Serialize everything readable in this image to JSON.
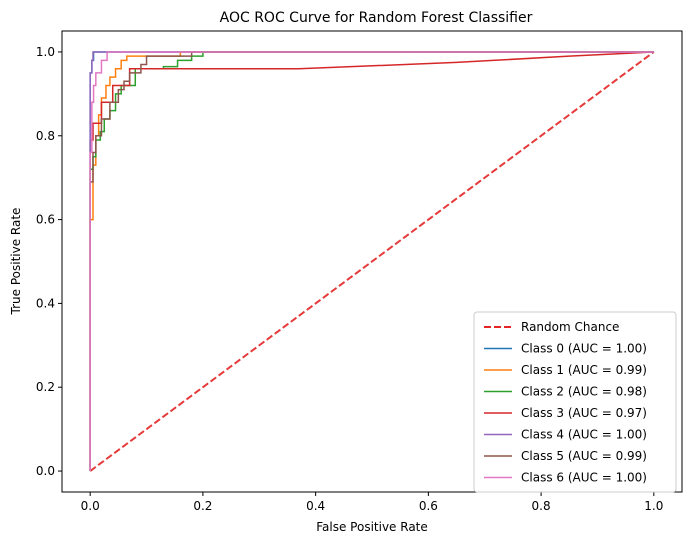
{
  "chart_data": {
    "type": "line",
    "title": "AOC ROC Curve for Random Forest Classifier",
    "xlabel": "False Positive Rate",
    "ylabel": "True Positive Rate",
    "xlim": [
      -0.05,
      1.05
    ],
    "ylim": [
      -0.05,
      1.05
    ],
    "xticks": [
      "0.0",
      "0.2",
      "0.4",
      "0.6",
      "0.8",
      "1.0"
    ],
    "yticks": [
      "0.0",
      "0.2",
      "0.4",
      "0.6",
      "0.8",
      "1.0"
    ],
    "grid": false,
    "legend_position": "lower-right",
    "series": [
      {
        "name": "Random Chance",
        "color": "#e32525",
        "dashed": true,
        "x": [
          0,
          1
        ],
        "y": [
          0,
          1
        ]
      },
      {
        "name": "Class 0 (AUC = 1.00)",
        "color": "#1f77b4",
        "dashed": false,
        "x": [
          0,
          0,
          0.003,
          0.003,
          0.006,
          0.006,
          1
        ],
        "y": [
          0,
          0.95,
          0.95,
          0.98,
          0.98,
          1.0,
          1.0
        ]
      },
      {
        "name": "Class 1 (AUC = 0.99)",
        "color": "#ff7f0e",
        "dashed": false,
        "x": [
          0,
          0,
          0.005,
          0.005,
          0.01,
          0.01,
          0.015,
          0.015,
          0.02,
          0.02,
          0.028,
          0.028,
          0.035,
          0.035,
          0.045,
          0.045,
          0.055,
          0.055,
          0.065,
          0.065,
          0.16,
          0.16,
          1
        ],
        "y": [
          0,
          0.6,
          0.6,
          0.73,
          0.73,
          0.8,
          0.8,
          0.85,
          0.85,
          0.89,
          0.89,
          0.92,
          0.92,
          0.94,
          0.94,
          0.96,
          0.96,
          0.98,
          0.98,
          0.99,
          0.99,
          1.0,
          1.0
        ]
      },
      {
        "name": "Class 2 (AUC = 0.98)",
        "color": "#2ca02c",
        "dashed": false,
        "x": [
          0,
          0,
          0.005,
          0.005,
          0.01,
          0.01,
          0.018,
          0.018,
          0.025,
          0.025,
          0.035,
          0.035,
          0.045,
          0.045,
          0.055,
          0.055,
          0.08,
          0.08,
          0.13,
          0.13,
          0.155,
          0.155,
          0.18,
          0.18,
          0.2,
          0.2,
          1
        ],
        "y": [
          0,
          0.72,
          0.72,
          0.75,
          0.75,
          0.79,
          0.79,
          0.81,
          0.81,
          0.84,
          0.84,
          0.86,
          0.86,
          0.9,
          0.9,
          0.92,
          0.92,
          0.96,
          0.96,
          0.965,
          0.965,
          0.98,
          0.98,
          0.99,
          0.99,
          1.0,
          1.0
        ]
      },
      {
        "name": "Class 3 (AUC = 0.97)",
        "color": "#d62728",
        "dashed": false,
        "x": [
          0,
          0,
          0.005,
          0.005,
          0.02,
          0.02,
          0.04,
          0.04,
          0.07,
          0.07,
          0.37,
          0.65,
          0.85,
          1
        ],
        "y": [
          0,
          0.79,
          0.79,
          0.83,
          0.83,
          0.88,
          0.88,
          0.92,
          0.92,
          0.96,
          0.96,
          0.975,
          0.99,
          1.0
        ]
      },
      {
        "name": "Class 4 (AUC = 1.00)",
        "color": "#9467bd",
        "dashed": false,
        "x": [
          0,
          0,
          0.003,
          0.003,
          0.005,
          0.005,
          1
        ],
        "y": [
          0,
          0.95,
          0.95,
          0.98,
          0.98,
          1.0,
          1.0
        ]
      },
      {
        "name": "Class 5 (AUC = 0.99)",
        "color": "#8c564b",
        "dashed": false,
        "x": [
          0,
          0,
          0.005,
          0.005,
          0.01,
          0.01,
          0.02,
          0.02,
          0.035,
          0.035,
          0.05,
          0.05,
          0.06,
          0.06,
          0.07,
          0.07,
          0.09,
          0.09,
          0.1,
          0.1,
          0.18,
          0.18,
          1
        ],
        "y": [
          0,
          0.69,
          0.69,
          0.76,
          0.76,
          0.8,
          0.8,
          0.84,
          0.84,
          0.88,
          0.88,
          0.91,
          0.91,
          0.93,
          0.93,
          0.95,
          0.95,
          0.97,
          0.97,
          0.99,
          0.99,
          1.0,
          1.0
        ]
      },
      {
        "name": "Class 6 (AUC = 1.00)",
        "color": "#e377c2",
        "dashed": false,
        "x": [
          0,
          0,
          0.003,
          0.003,
          0.006,
          0.006,
          0.01,
          0.01,
          0.02,
          0.02,
          0.03,
          0.03,
          1
        ],
        "y": [
          0,
          0.76,
          0.76,
          0.88,
          0.88,
          0.92,
          0.92,
          0.95,
          0.95,
          0.98,
          0.98,
          1.0,
          1.0
        ]
      }
    ]
  }
}
